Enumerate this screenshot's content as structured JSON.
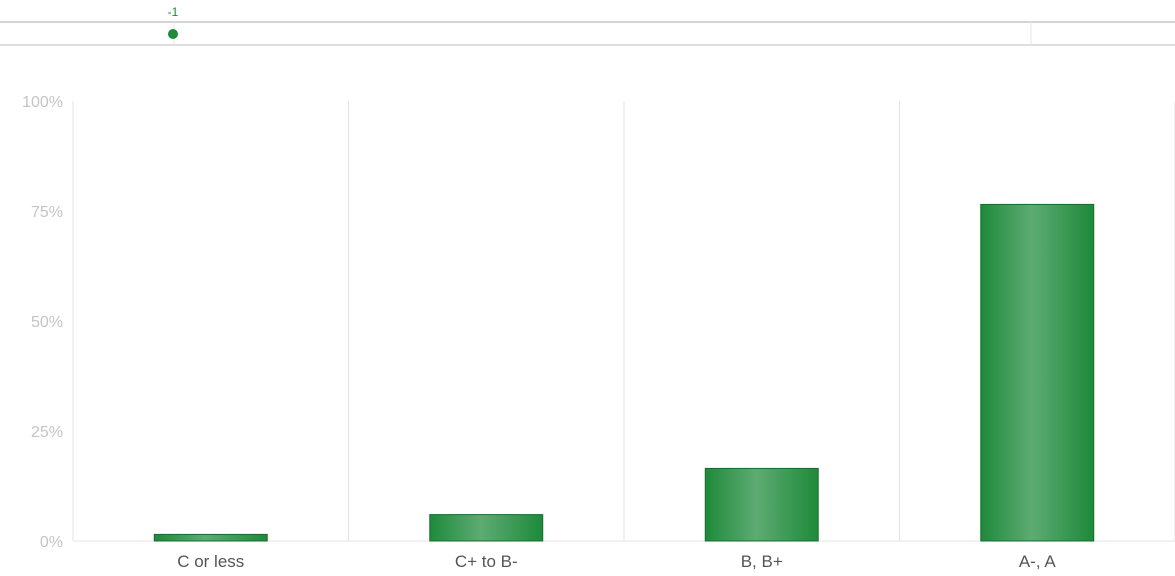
{
  "colors": {
    "bar_fill": "#1e8a3a",
    "bar_highlight": "#5dab73",
    "bar_stroke": "#176b2d",
    "grid": "#e3e3e3",
    "axis_text": "#c4c4c4",
    "category_text": "#555555",
    "slider_track": "#d4d4d4"
  },
  "slider": {
    "marker_label": "-1"
  },
  "chart_data": {
    "type": "bar",
    "categories": [
      "C or less",
      "C+ to B-",
      "B, B+",
      "A-, A"
    ],
    "values": [
      1.5,
      6,
      16.5,
      76.5
    ],
    "yticks": [
      "0%",
      "25%",
      "50%",
      "75%",
      "100%"
    ],
    "ylim": [
      0,
      100
    ],
    "title": "",
    "xlabel": "",
    "ylabel": "",
    "grid": true
  }
}
